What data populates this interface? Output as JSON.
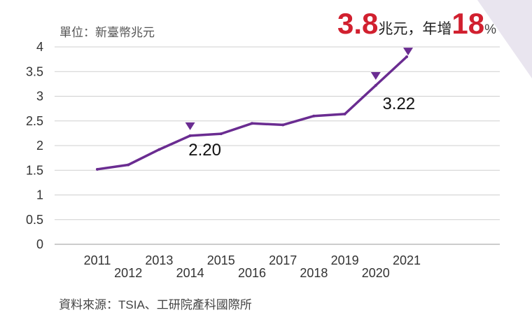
{
  "unit_label": "單位：新臺幣兆元",
  "headline": {
    "value": "3.8",
    "unit": "兆元，年增",
    "growth": "18",
    "pct_sign": "%"
  },
  "source": "資料來源：TSIA、工研院產科國際所",
  "colors": {
    "line": "#6a2c91",
    "accent": "#d1202f",
    "corner": "#e9e5ef"
  },
  "chart_data": {
    "type": "line",
    "title": "",
    "xlabel": "",
    "ylabel": "",
    "x": [
      "2011",
      "2012",
      "2013",
      "2014",
      "2015",
      "2016",
      "2017",
      "2018",
      "2019",
      "2020",
      "2021"
    ],
    "series": [
      {
        "values": [
          1.52,
          1.61,
          1.92,
          2.2,
          2.24,
          2.45,
          2.42,
          2.6,
          2.64,
          3.22,
          3.8
        ]
      }
    ],
    "ylim": [
      0,
      4
    ],
    "yticks": [
      "0",
      "0.5",
      "1",
      "1.5",
      "2",
      "2.5",
      "3",
      "3.5",
      "4"
    ],
    "markers": [
      {
        "x": "2014",
        "label": "2.20"
      },
      {
        "x": "2020",
        "label": "3.22"
      },
      {
        "x": "2021",
        "label": ""
      }
    ],
    "grid": true
  }
}
